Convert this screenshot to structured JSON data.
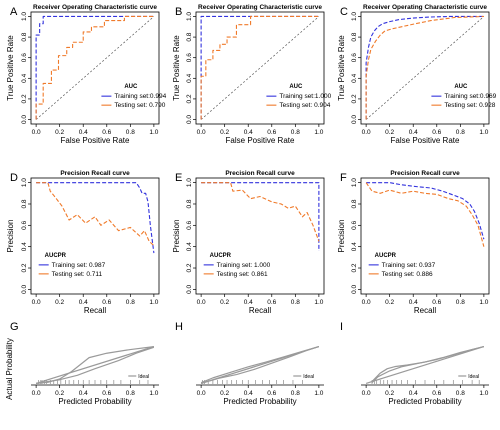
{
  "colors": {
    "training": "#3333dd",
    "testing": "#f07a2a",
    "calibration_line": "#9a9a9a",
    "diagonal": "#555555"
  },
  "chart_data": [
    {
      "panel": "A",
      "type": "line",
      "title": "Receiver Operating Characteristic curve",
      "xlabel": "False Positive Rate",
      "ylabel": "True Positive Rate",
      "xlim": [
        0,
        1
      ],
      "ylim": [
        0,
        1
      ],
      "xticks": [
        "0.0",
        "0.2",
        "0.4",
        "0.6",
        "0.8",
        "1.0"
      ],
      "yticks": [
        "0.0",
        "0.2",
        "0.4",
        "0.6",
        "0.8",
        "1.0"
      ],
      "legend_title": "AUC",
      "legend_position": "bottom-right",
      "reference_diagonal": true,
      "series": [
        {
          "name": "Training set:0.994",
          "x": [
            0,
            0,
            0.03,
            0.03,
            0.06,
            0.06,
            1
          ],
          "y": [
            0,
            0.82,
            0.82,
            0.93,
            0.93,
            1,
            1
          ]
        },
        {
          "name": "Testing set: 0.790",
          "x": [
            0,
            0,
            0.06,
            0.06,
            0.13,
            0.13,
            0.19,
            0.19,
            0.26,
            0.26,
            0.31,
            0.31,
            0.4,
            0.4,
            0.47,
            0.47,
            0.58,
            0.58,
            0.75,
            0.75,
            1
          ],
          "y": [
            0,
            0.15,
            0.15,
            0.35,
            0.35,
            0.48,
            0.48,
            0.62,
            0.62,
            0.7,
            0.7,
            0.75,
            0.75,
            0.85,
            0.85,
            0.9,
            0.9,
            0.96,
            0.96,
            1,
            1
          ]
        }
      ]
    },
    {
      "panel": "B",
      "type": "line",
      "title": "Receiver Operating Characteristic curve",
      "xlabel": "False Positive Rate",
      "ylabel": "True Positive Rate",
      "xlim": [
        0,
        1
      ],
      "ylim": [
        0,
        1
      ],
      "xticks": [
        "0.0",
        "0.2",
        "0.4",
        "0.6",
        "0.8",
        "1.0"
      ],
      "yticks": [
        "0.0",
        "0.2",
        "0.4",
        "0.6",
        "0.8",
        "1.0"
      ],
      "legend_title": "AUC",
      "legend_position": "bottom-right",
      "reference_diagonal": true,
      "series": [
        {
          "name": "Training set:1.000",
          "x": [
            0,
            0,
            1
          ],
          "y": [
            0,
            1,
            1
          ]
        },
        {
          "name": "Testing set: 0.904",
          "x": [
            0,
            0,
            0.04,
            0.04,
            0.1,
            0.1,
            0.16,
            0.16,
            0.22,
            0.22,
            0.3,
            0.3,
            0.42,
            0.42,
            1
          ],
          "y": [
            0,
            0.42,
            0.42,
            0.58,
            0.58,
            0.67,
            0.67,
            0.73,
            0.73,
            0.8,
            0.8,
            0.92,
            0.92,
            1,
            1
          ]
        }
      ]
    },
    {
      "panel": "C",
      "type": "line",
      "title": "Receiver Operating Characteristic curve",
      "xlabel": "False Positive Rate",
      "ylabel": "True Positive Rate",
      "xlim": [
        0,
        1
      ],
      "ylim": [
        0,
        1
      ],
      "xticks": [
        "0.0",
        "0.2",
        "0.4",
        "0.6",
        "0.8",
        "1.0"
      ],
      "yticks": [
        "0.0",
        "0.2",
        "0.4",
        "0.6",
        "0.8",
        "1.0"
      ],
      "legend_title": "AUC",
      "legend_position": "bottom-right",
      "reference_diagonal": true,
      "series": [
        {
          "name": "Training set:0.969",
          "x": [
            0,
            0,
            0.02,
            0.04,
            0.07,
            0.1,
            0.14,
            0.2,
            0.28,
            0.4,
            0.55,
            0.7,
            1
          ],
          "y": [
            0,
            0.55,
            0.7,
            0.8,
            0.86,
            0.9,
            0.93,
            0.95,
            0.97,
            0.985,
            0.995,
            1,
            1
          ]
        },
        {
          "name": "Testing set: 0.928",
          "x": [
            0,
            0,
            0.02,
            0.04,
            0.08,
            0.12,
            0.16,
            0.22,
            0.3,
            0.42,
            0.55,
            0.75,
            1
          ],
          "y": [
            0,
            0.42,
            0.58,
            0.68,
            0.76,
            0.82,
            0.86,
            0.88,
            0.9,
            0.93,
            0.96,
            0.99,
            1
          ]
        }
      ]
    },
    {
      "panel": "D",
      "type": "line",
      "title": "Precision Recall curve",
      "xlabel": "Recall",
      "ylabel": "Precision",
      "xlim": [
        0,
        1
      ],
      "ylim": [
        0,
        1
      ],
      "xticks": [
        "0.0",
        "0.2",
        "0.4",
        "0.6",
        "0.8",
        "1.0"
      ],
      "yticks": [
        "0.0",
        "0.2",
        "0.4",
        "0.6",
        "0.8",
        "1.0"
      ],
      "legend_title": "AUCPR",
      "legend_position": "bottom-left",
      "reference_diagonal": false,
      "series": [
        {
          "name": "Training set: 0.987",
          "x": [
            0,
            0.85,
            0.88,
            0.9,
            0.93,
            0.95,
            0.97,
            1
          ],
          "y": [
            1,
            1,
            0.95,
            0.9,
            0.9,
            0.82,
            0.6,
            0.34
          ]
        },
        {
          "name": "Testing set: 0.711",
          "x": [
            0,
            0.1,
            0.12,
            0.15,
            0.22,
            0.28,
            0.35,
            0.42,
            0.5,
            0.55,
            0.62,
            0.7,
            0.8,
            0.88,
            0.92,
            0.96,
            1
          ],
          "y": [
            1,
            1,
            0.92,
            0.88,
            0.78,
            0.65,
            0.7,
            0.62,
            0.68,
            0.6,
            0.65,
            0.55,
            0.58,
            0.5,
            0.55,
            0.45,
            0.41
          ]
        }
      ]
    },
    {
      "panel": "E",
      "type": "line",
      "title": "Precision Recall curve",
      "xlabel": "Recall",
      "ylabel": "Precision",
      "xlim": [
        0,
        1
      ],
      "ylim": [
        0,
        1
      ],
      "xticks": [
        "0.0",
        "0.2",
        "0.4",
        "0.6",
        "0.8",
        "1.0"
      ],
      "yticks": [
        "0.0",
        "0.2",
        "0.4",
        "0.6",
        "0.8",
        "1.0"
      ],
      "legend_title": "AUCPR",
      "legend_position": "bottom-left",
      "reference_diagonal": false,
      "series": [
        {
          "name": "Training set: 1.000",
          "x": [
            0,
            0.98,
            1,
            1
          ],
          "y": [
            1,
            1,
            1,
            0.36
          ]
        },
        {
          "name": "Testing set: 0.861",
          "x": [
            0,
            0.25,
            0.27,
            0.35,
            0.42,
            0.5,
            0.6,
            0.68,
            0.74,
            0.8,
            0.86,
            0.9,
            0.95,
            1
          ],
          "y": [
            1,
            1,
            0.92,
            0.93,
            0.85,
            0.87,
            0.82,
            0.8,
            0.76,
            0.78,
            0.68,
            0.72,
            0.6,
            0.45
          ]
        }
      ]
    },
    {
      "panel": "F",
      "type": "line",
      "title": "Precision Recall curve",
      "xlabel": "Recall",
      "ylabel": "Precision",
      "xlim": [
        0,
        1
      ],
      "ylim": [
        0,
        1
      ],
      "xticks": [
        "0.0",
        "0.2",
        "0.4",
        "0.6",
        "0.8",
        "1.0"
      ],
      "yticks": [
        "0.0",
        "0.2",
        "0.4",
        "0.6",
        "0.8",
        "1.0"
      ],
      "legend_title": "AUCPR",
      "legend_position": "bottom-left",
      "reference_diagonal": false,
      "series": [
        {
          "name": "Training set: 0.937",
          "x": [
            0,
            0.2,
            0.3,
            0.45,
            0.55,
            0.65,
            0.75,
            0.82,
            0.88,
            0.92,
            0.96,
            1
          ],
          "y": [
            1,
            1,
            0.98,
            0.96,
            0.95,
            0.92,
            0.88,
            0.85,
            0.8,
            0.73,
            0.62,
            0.47
          ]
        },
        {
          "name": "Testing set: 0.886",
          "x": [
            0,
            0.05,
            0.12,
            0.2,
            0.3,
            0.4,
            0.5,
            0.6,
            0.7,
            0.78,
            0.85,
            0.9,
            0.95,
            1
          ],
          "y": [
            1,
            0.92,
            0.9,
            0.93,
            0.9,
            0.92,
            0.9,
            0.89,
            0.85,
            0.83,
            0.78,
            0.7,
            0.6,
            0.4
          ]
        }
      ]
    },
    {
      "panel": "G",
      "type": "line",
      "xlabel": "Predicted Probability",
      "ylabel": "Actual Probability",
      "xlim": [
        0,
        1
      ],
      "ylim": [
        0,
        1
      ],
      "xticks": [
        "0.0",
        "0.2",
        "0.4",
        "0.6",
        "0.8",
        "1.0"
      ],
      "yticks": [],
      "legend_title": "",
      "legend_position": "bottom-right",
      "reference_diagonal": false,
      "ideal_label": "Ideal",
      "series": [
        {
          "name": "Ideal",
          "x": [
            0,
            1
          ],
          "y": [
            0,
            1
          ]
        },
        {
          "name": "",
          "x": [
            0,
            0.1,
            0.2,
            0.3,
            0.45,
            0.6,
            0.8,
            1
          ],
          "y": [
            0,
            0.03,
            0.12,
            0.32,
            0.7,
            0.82,
            0.92,
            1
          ]
        },
        {
          "name": "",
          "x": [
            0,
            0.2,
            0.35,
            0.5,
            0.7,
            0.85,
            1
          ],
          "y": [
            0,
            0.1,
            0.22,
            0.4,
            0.62,
            0.82,
            0.98
          ]
        }
      ],
      "rug_x": [
        0.02,
        0.04,
        0.05,
        0.07,
        0.09,
        0.12,
        0.15,
        0.18,
        0.21,
        0.25,
        0.28,
        0.32,
        0.36,
        0.4,
        0.45,
        0.5,
        0.55,
        0.6,
        0.66,
        0.72,
        0.8,
        0.88,
        0.95
      ]
    },
    {
      "panel": "H",
      "type": "line",
      "xlabel": "Predicted Probability",
      "ylabel": "",
      "xlim": [
        0,
        1
      ],
      "ylim": [
        0,
        1
      ],
      "xticks": [
        "0.0",
        "0.2",
        "0.4",
        "0.6",
        "0.8",
        "1.0"
      ],
      "yticks": [],
      "legend_title": "",
      "legend_position": "bottom-right",
      "reference_diagonal": false,
      "ideal_label": "Ideal",
      "series": [
        {
          "name": "Ideal",
          "x": [
            0,
            1
          ],
          "y": [
            0,
            1
          ]
        },
        {
          "name": "",
          "x": [
            0,
            0.1,
            0.25,
            0.4,
            0.55,
            0.7,
            0.85,
            1
          ],
          "y": [
            0.02,
            0.15,
            0.3,
            0.45,
            0.58,
            0.72,
            0.86,
            1
          ]
        },
        {
          "name": "",
          "x": [
            0,
            0.15,
            0.3,
            0.45,
            0.6,
            0.75,
            0.9,
            1
          ],
          "y": [
            0,
            0.14,
            0.24,
            0.38,
            0.55,
            0.72,
            0.9,
            1
          ]
        }
      ],
      "rug_x": [
        0.01,
        0.03,
        0.06,
        0.1,
        0.14,
        0.18,
        0.22,
        0.26,
        0.3,
        0.35,
        0.4,
        0.46,
        0.52,
        0.58,
        0.64,
        0.7,
        0.78,
        0.86
      ]
    },
    {
      "panel": "I",
      "type": "line",
      "xlabel": "Predicted Probability",
      "ylabel": "",
      "xlim": [
        0,
        1
      ],
      "ylim": [
        0,
        1
      ],
      "xticks": [
        "0.0",
        "0.2",
        "0.4",
        "0.6",
        "0.8",
        "1.0"
      ],
      "yticks": [],
      "legend_title": "",
      "legend_position": "bottom-right",
      "reference_diagonal": false,
      "ideal_label": "Ideal",
      "series": [
        {
          "name": "Ideal",
          "x": [
            0,
            1
          ],
          "y": [
            0,
            1
          ]
        },
        {
          "name": "",
          "x": [
            0.05,
            0.12,
            0.18,
            0.25,
            0.35,
            0.5,
            0.65,
            0.8,
            1
          ],
          "y": [
            0.05,
            0.28,
            0.4,
            0.46,
            0.5,
            0.58,
            0.7,
            0.84,
            1
          ]
        },
        {
          "name": "",
          "x": [
            0.05,
            0.1,
            0.2,
            0.3,
            0.45,
            0.6,
            0.75,
            0.9,
            1
          ],
          "y": [
            0.02,
            0.18,
            0.34,
            0.45,
            0.55,
            0.65,
            0.78,
            0.92,
            1
          ]
        }
      ],
      "rug_x": [
        0.05,
        0.07,
        0.09,
        0.12,
        0.15,
        0.18,
        0.22,
        0.26,
        0.3,
        0.35,
        0.42,
        0.5,
        0.58,
        0.66,
        0.74,
        0.82,
        0.9,
        0.96
      ]
    }
  ]
}
